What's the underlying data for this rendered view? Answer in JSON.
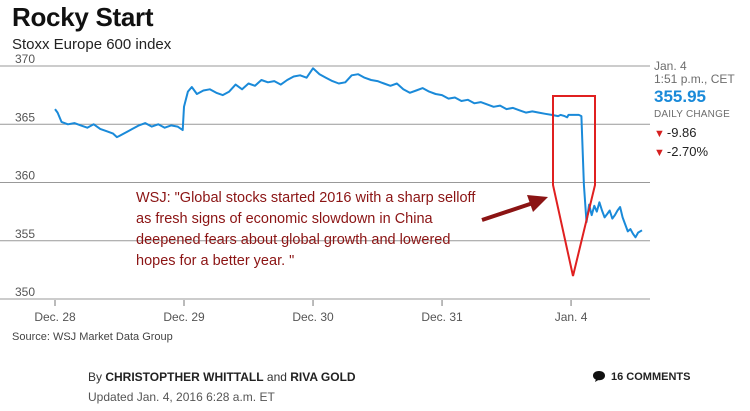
{
  "header": {
    "title": "Rocky Start",
    "subtitle": "Stoxx Europe 600 index"
  },
  "chart_data": {
    "type": "line",
    "title": "Rocky Start",
    "subtitle": "Stoxx Europe 600 index",
    "ylim": [
      350,
      370
    ],
    "yticks": [
      370,
      365,
      360,
      355,
      350
    ],
    "xlim": [
      0,
      4.55
    ],
    "xtick_labels": [
      "Dec. 28",
      "Dec. 29",
      "Dec. 30",
      "Dec. 31",
      "Jan. 4"
    ],
    "xtick_positions": [
      0,
      1,
      2,
      3,
      4
    ],
    "grid": "horizontal",
    "series": [
      {
        "color": "#1a8ad9",
        "x": [
          0,
          0.02,
          0.05,
          0.1,
          0.15,
          0.2,
          0.25,
          0.3,
          0.35,
          0.4,
          0.45,
          0.48,
          0.5,
          0.55,
          0.6,
          0.65,
          0.7,
          0.75,
          0.8,
          0.85,
          0.9,
          0.95,
          0.99,
          1.0,
          1.03,
          1.06,
          1.1,
          1.15,
          1.2,
          1.25,
          1.3,
          1.35,
          1.4,
          1.45,
          1.5,
          1.55,
          1.6,
          1.65,
          1.7,
          1.75,
          1.8,
          1.85,
          1.9,
          1.95,
          2.0,
          2.05,
          2.1,
          2.15,
          2.2,
          2.25,
          2.3,
          2.35,
          2.4,
          2.45,
          2.5,
          2.55,
          2.6,
          2.65,
          2.7,
          2.75,
          2.8,
          2.85,
          2.9,
          2.95,
          3.0,
          3.05,
          3.1,
          3.15,
          3.2,
          3.25,
          3.3,
          3.35,
          3.4,
          3.45,
          3.5,
          3.55,
          3.6,
          3.65,
          3.7,
          3.75,
          3.8,
          3.85,
          3.9,
          3.92,
          3.95,
          3.97,
          3.98,
          4.0,
          4.02,
          4.04,
          4.06,
          4.08,
          4.1,
          4.12,
          4.14,
          4.16,
          4.18,
          4.2,
          4.22,
          4.24,
          4.26,
          4.28,
          4.3,
          4.32,
          4.34,
          4.36,
          4.38,
          4.4,
          4.42,
          4.44,
          4.46,
          4.48,
          4.5,
          4.52,
          4.55
        ],
        "values": [
          366.3,
          366.0,
          365.2,
          365.0,
          365.1,
          364.9,
          364.7,
          365.0,
          364.6,
          364.4,
          364.2,
          363.9,
          364.0,
          364.3,
          364.6,
          364.9,
          365.1,
          364.8,
          365.0,
          364.7,
          364.9,
          364.8,
          364.5,
          366.5,
          367.8,
          368.2,
          367.6,
          367.9,
          368.0,
          367.7,
          367.5,
          367.8,
          368.4,
          368.0,
          368.5,
          368.3,
          368.8,
          368.6,
          368.7,
          368.4,
          368.8,
          369.1,
          369.2,
          369.0,
          369.8,
          369.3,
          369.0,
          368.7,
          368.5,
          368.6,
          369.2,
          369.3,
          369.0,
          368.8,
          368.7,
          368.5,
          368.3,
          368.5,
          368.0,
          367.7,
          367.9,
          368.1,
          367.8,
          367.6,
          367.5,
          367.2,
          367.3,
          367.0,
          367.1,
          366.8,
          366.9,
          366.7,
          366.5,
          366.6,
          366.3,
          366.4,
          366.2,
          366.0,
          366.1,
          366.0,
          365.9,
          365.8,
          365.7,
          365.8,
          365.7,
          365.6,
          365.8,
          365.8,
          365.8,
          365.8,
          365.8,
          365.7,
          359.8,
          356.6,
          358.1,
          357.2,
          358.0,
          357.5,
          358.3,
          357.6,
          357.0,
          357.3,
          357.6,
          356.9,
          357.2,
          357.6,
          357.9,
          357.0,
          356.4,
          355.8,
          356.0,
          355.6,
          355.3,
          355.7,
          355.9
        ]
      }
    ]
  },
  "sidebar": {
    "date": "Jan. 4",
    "time": "1:51 p.m., CET",
    "price": "355.95",
    "daily_change_label": "DAILY CHANGE",
    "change_points": "-9.86",
    "change_percent": "-2.70%"
  },
  "annotation": {
    "text": "WSJ: \"Global stocks started 2016 with a sharp selloff as fresh signs of economic slowdown in China deepened fears about global growth and lowered hopes for a better year. \""
  },
  "source": "Source: WSJ Market Data Group",
  "byline": {
    "prefix": "By ",
    "author1": "CHRISTOPTHER WHITTALL",
    "conj": " and ",
    "author2": "RIVA GOLD"
  },
  "updated": "Updated Jan. 4, 2016 6:28 a.m. ET",
  "comments_label": "16 COMMENTS",
  "colors": {
    "line": "#1a8ad9",
    "grid": "#999999",
    "annotation": "#8b1414",
    "highlight": "#e02020",
    "negative": "#d62020"
  }
}
